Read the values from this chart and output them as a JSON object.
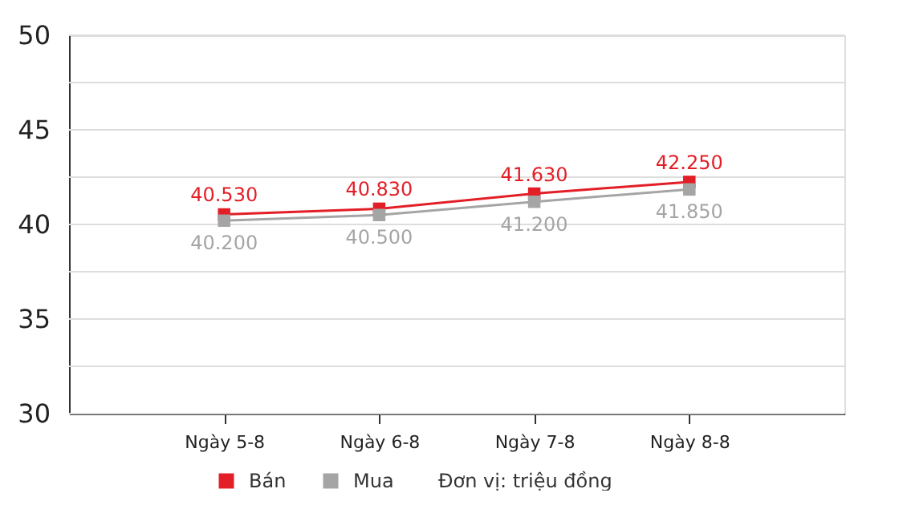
{
  "chart_data": {
    "type": "line",
    "categories": [
      "Ngày 5-8",
      "Ngày 6-8",
      "Ngày 7-8",
      "Ngày 8-8"
    ],
    "series": [
      {
        "name": "Bán",
        "color": "#e31e26",
        "values": [
          40.53,
          40.83,
          41.63,
          42.25
        ],
        "value_labels": [
          "40.530",
          "40.830",
          "41.630",
          "42.250"
        ]
      },
      {
        "name": "Mua",
        "color": "#a5a5a5",
        "values": [
          40.2,
          40.5,
          41.2,
          41.85
        ],
        "value_labels": [
          "40.200",
          "40.500",
          "41.200",
          "41.850"
        ]
      }
    ],
    "ylim": [
      30,
      50
    ],
    "yticks": [
      30,
      {
        "value": 32.5,
        "label": null
      },
      35,
      {
        "value": 37.5,
        "label": null
      },
      40,
      {
        "value": 42.5,
        "label": null
      },
      45,
      {
        "value": 47.5,
        "label": null
      },
      50
    ],
    "grid": "y",
    "marker": "square",
    "line_style": "solid",
    "legend": "bottom left",
    "annotations": [
      "Đơn vị: triệu đồng"
    ]
  }
}
